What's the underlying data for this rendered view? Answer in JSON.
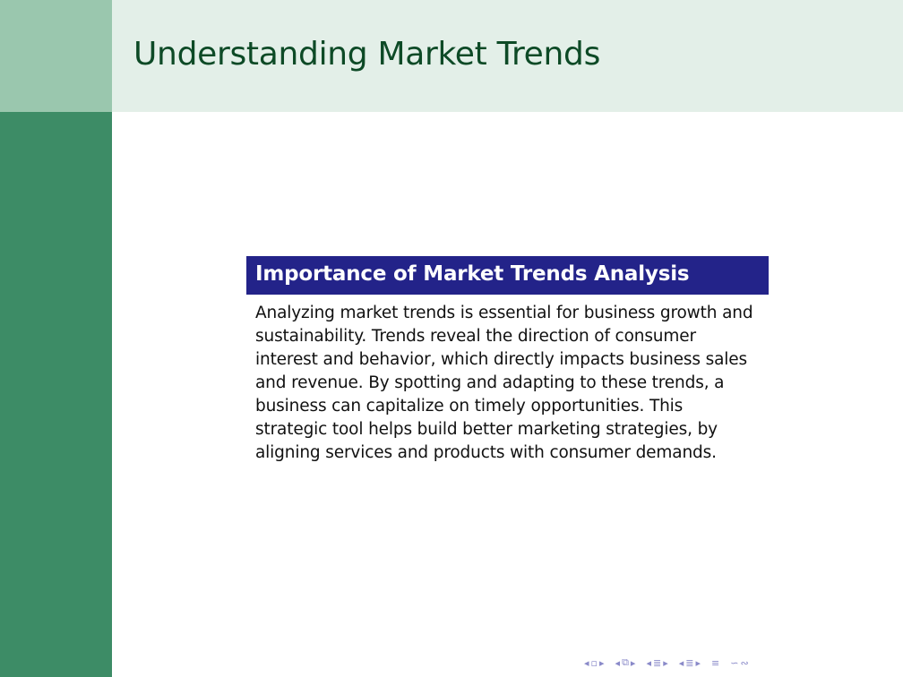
{
  "slide": {
    "title": "Understanding Market Trends",
    "block": {
      "title": "Importance of Market Trends Analysis",
      "body": "Analyzing market trends is essential for business growth and sustainability. Trends reveal the direction of consumer interest and behavior, which directly impacts business sales and revenue. By spotting and adapting to these trends, a business can capitalize on timely opportunities. This strategic tool helps build better marketing strategies, by aligning services and products with consumer demands."
    }
  },
  "navigation": {
    "icons": [
      "prev-frame-icon",
      "frame-icon",
      "next-frame-icon",
      "prev-subsection-icon",
      "subsection-icon",
      "next-subsection-icon",
      "prev-section-icon",
      "section-icon",
      "next-section-icon",
      "toc-icon",
      "search-icon"
    ]
  },
  "colors": {
    "sidebar": "#3d8c66",
    "corner": "#9ac7ae",
    "header": "#e3efe8",
    "title_text": "#0d4a26",
    "block_title_bg": "#232389",
    "nav_icons": "#8a8ac9"
  }
}
